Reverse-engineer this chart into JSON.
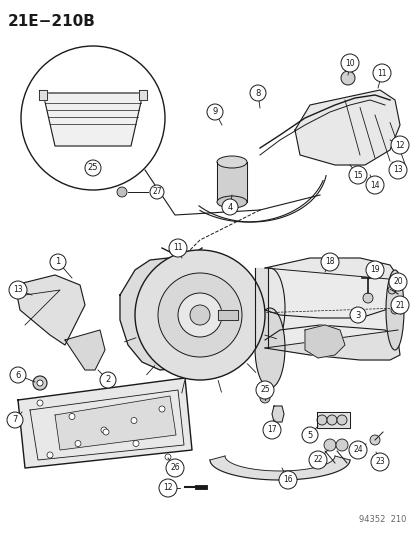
{
  "title": "21E−210B",
  "catalog_number": "94352  210",
  "bg_color": "#ffffff",
  "lc": "#1a1a1a",
  "fig_width": 4.14,
  "fig_height": 5.33,
  "dpi": 100
}
